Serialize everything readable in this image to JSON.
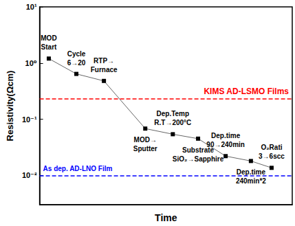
{
  "chart_data": {
    "type": "line",
    "x_label": "Time",
    "y_label": "Resistivity(Ωcm)",
    "x": [
      0.4,
      1.6,
      2.8,
      4.6,
      5.8,
      6.9,
      8.1,
      9.2,
      10.1
    ],
    "values": [
      1.2,
      0.64,
      0.48,
      0.068,
      0.054,
      0.045,
      0.022,
      0.018,
      0.0136
    ],
    "annotations": [
      "MOD\nStart",
      "Cycle\n6→20",
      "RTP→\nFurnace",
      "MOD→\nSputter",
      "Dep.Temp\nR.T→200°C",
      "Substrate\nSiO₂→Sapphire",
      "Dep.time\n90→240min",
      "Dep.time\n240min*2",
      "O₂Rati\n3→6scc"
    ],
    "color": "#000000",
    "marker": "square",
    "line_style": "solid",
    "log": "y",
    "grid": false,
    "tick_labels": "y",
    "xlim": [
      0,
      11
    ],
    "ylim": [
      0.003,
      10
    ],
    "yticks": [
      {
        "value": 0.01,
        "label": "10⁻²"
      },
      {
        "value": 0.1,
        "label": "10⁻¹"
      },
      {
        "value": 1,
        "label": "10⁰"
      },
      {
        "value": 10,
        "label": "10¹"
      }
    ],
    "reference_lines": [
      {
        "value": 0.226,
        "label": "KIMS AD-LSMO Films",
        "color": "#ff0000",
        "line_style": "dashed"
      },
      {
        "value": 0.01,
        "label": "As dep. AD-LNO Film",
        "color": "#0000ff",
        "line_style": "dashed"
      }
    ]
  }
}
